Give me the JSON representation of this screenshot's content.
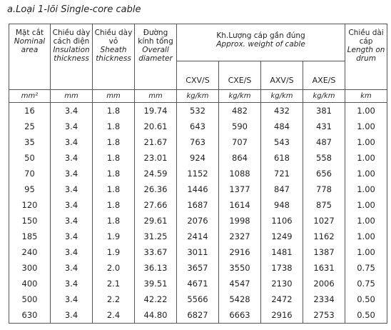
{
  "title": "a.Loại 1-lõi Single-core cable",
  "table": {
    "header": [
      {
        "vi": "Mặt cắt",
        "en": "Nominal area"
      },
      {
        "vi": "Chiều dày cách điện",
        "en": "Insulation thickness"
      },
      {
        "vi": "Chiều dày vỏ",
        "en": "Sheath thickness"
      },
      {
        "vi": "Đường kính tổng",
        "en": "Overall diameter"
      },
      {
        "vi": "Kh.Lượng cáp gần đúng",
        "en": "Approx. weight of cable"
      },
      {
        "vi": "Chiều dài cáp",
        "en": "Length on drum"
      }
    ],
    "subheaders": [
      "CXV/S",
      "CXE/S",
      "AXV/S",
      "AXE/S"
    ],
    "units": [
      "mm²",
      "mm",
      "mm",
      "mm",
      "kg/km",
      "kg/km",
      "kg/km",
      "kg/km",
      "km"
    ],
    "rows": [
      [
        "16",
        "3.4",
        "1.8",
        "19.74",
        "532",
        "482",
        "432",
        "381",
        "1.00"
      ],
      [
        "25",
        "3.4",
        "1.8",
        "20.61",
        "643",
        "590",
        "484",
        "431",
        "1.00"
      ],
      [
        "35",
        "3.4",
        "1.8",
        "21.67",
        "763",
        "707",
        "543",
        "487",
        "1.00"
      ],
      [
        "50",
        "3.4",
        "1.8",
        "23.01",
        "924",
        "864",
        "618",
        "558",
        "1.00"
      ],
      [
        "70",
        "3.4",
        "1.8",
        "24.59",
        "1152",
        "1088",
        "721",
        "656",
        "1.00"
      ],
      [
        "95",
        "3.4",
        "1.8",
        "26.36",
        "1446",
        "1377",
        "847",
        "778",
        "1.00"
      ],
      [
        "120",
        "3.4",
        "1.8",
        "27.66",
        "1687",
        "1614",
        "948",
        "875",
        "1.00"
      ],
      [
        "150",
        "3.4",
        "1.8",
        "29.61",
        "2076",
        "1998",
        "1106",
        "1027",
        "1.00"
      ],
      [
        "185",
        "3.4",
        "1.9",
        "31.25",
        "2414",
        "2327",
        "1249",
        "1162",
        "1.00"
      ],
      [
        "240",
        "3.4",
        "1.9",
        "33.67",
        "3011",
        "2916",
        "1481",
        "1387",
        "1.00"
      ],
      [
        "300",
        "3.4",
        "2.0",
        "36.13",
        "3657",
        "3550",
        "1738",
        "1631",
        "0.75"
      ],
      [
        "400",
        "3.4",
        "2.1",
        "39.51",
        "4671",
        "4547",
        "2130",
        "2006",
        "0.75"
      ],
      [
        "500",
        "3.4",
        "2.2",
        "42.22",
        "5566",
        "5428",
        "2472",
        "2334",
        "0.50"
      ],
      [
        "630",
        "3.4",
        "2.4",
        "44.80",
        "6827",
        "6663",
        "2916",
        "2753",
        "0.50"
      ]
    ]
  }
}
